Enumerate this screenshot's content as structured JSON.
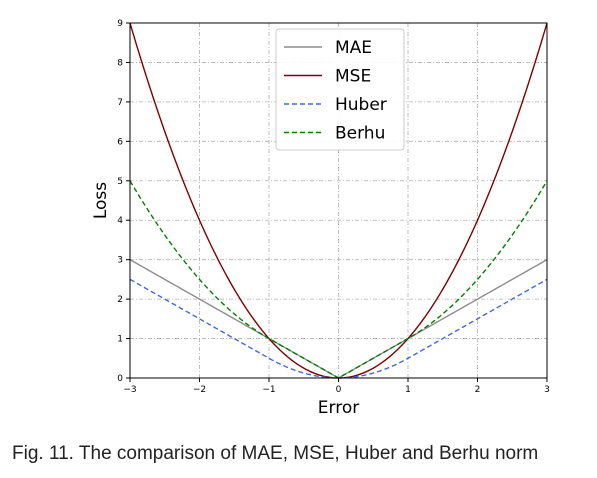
{
  "chart_data": {
    "type": "line",
    "xlabel": "Error",
    "ylabel": "Loss",
    "xlim": [
      -3,
      3
    ],
    "ylim": [
      0,
      9
    ],
    "xticks": [
      -3,
      -2,
      -1,
      0,
      1,
      2,
      3
    ],
    "xtick_labels": [
      "−3",
      "−2",
      "−1",
      "0",
      "1",
      "2",
      "3"
    ],
    "yticks": [
      0,
      1,
      2,
      3,
      4,
      5,
      6,
      7,
      8,
      9
    ],
    "ytick_labels": [
      "0",
      "1",
      "2",
      "3",
      "4",
      "5",
      "6",
      "7",
      "8",
      "9"
    ],
    "grid": true,
    "legend_position": "top-center",
    "x": [
      -3,
      -2.5,
      -2,
      -1.5,
      -1,
      -0.75,
      -0.5,
      -0.25,
      0,
      0.25,
      0.5,
      0.75,
      1,
      1.5,
      2,
      2.5,
      3
    ],
    "series": [
      {
        "name": "MAE",
        "color": "#8c8c8c",
        "dash": "solid",
        "values": [
          3,
          2.5,
          2,
          1.5,
          1,
          0.75,
          0.5,
          0.25,
          0,
          0.25,
          0.5,
          0.75,
          1,
          1.5,
          2,
          2.5,
          3
        ]
      },
      {
        "name": "MSE",
        "color": "#800000",
        "dash": "solid",
        "values": [
          9,
          6.25,
          4,
          2.25,
          1,
          0.5625,
          0.25,
          0.0625,
          0,
          0.0625,
          0.25,
          0.5625,
          1,
          2.25,
          4,
          6.25,
          9
        ]
      },
      {
        "name": "Huber",
        "color": "#4169e1",
        "dash": "dashed",
        "values": [
          2.5,
          2,
          1.5,
          1,
          0.5,
          0.28,
          0.125,
          0.03,
          0,
          0.03,
          0.125,
          0.28,
          0.5,
          1,
          1.5,
          2,
          2.5
        ]
      },
      {
        "name": "Berhu",
        "color": "#008000",
        "dash": "dashed",
        "values": [
          5,
          3.625,
          2.5,
          1.625,
          1,
          0.75,
          0.5,
          0.25,
          0,
          0.25,
          0.5,
          0.75,
          1,
          1.625,
          2.5,
          3.625,
          5
        ]
      }
    ]
  },
  "caption": "Fig. 11. The comparison of MAE, MSE, Huber and Berhu norm"
}
